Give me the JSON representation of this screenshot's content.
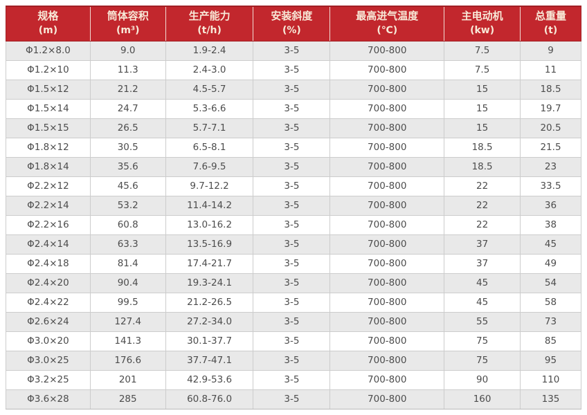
{
  "colors": {
    "header_bg": "#c2272d",
    "header_border": "#a21f24",
    "header_divider": "#f2ddd5",
    "header_text": "#f8e9d8",
    "row_alt_bg": "#e9e9e9",
    "row_bg": "#ffffff",
    "cell_border": "#cccccc",
    "outer_bottom_border": "#b9b9b9",
    "cell_text": "#4c4c4c",
    "page_bg": "#ffffff"
  },
  "table": {
    "columns": [
      {
        "label": "规格",
        "unit": "(m)"
      },
      {
        "label": "筒体容积",
        "unit": "(m³)"
      },
      {
        "label": "生产能力",
        "unit": "(t/h)"
      },
      {
        "label": "安装斜度",
        "unit": "(%)"
      },
      {
        "label": "最高进气温度",
        "unit": "(℃)"
      },
      {
        "label": "主电动机",
        "unit": "(kw)"
      },
      {
        "label": "总重量",
        "unit": "(t)"
      }
    ],
    "rows": [
      [
        "Φ1.2×8.0",
        "9.0",
        "1.9-2.4",
        "3-5",
        "700-800",
        "7.5",
        "9"
      ],
      [
        "Φ1.2×10",
        "11.3",
        "2.4-3.0",
        "3-5",
        "700-800",
        "7.5",
        "11"
      ],
      [
        "Φ1.5×12",
        "21.2",
        "4.5-5.7",
        "3-5",
        "700-800",
        "15",
        "18.5"
      ],
      [
        "Φ1.5×14",
        "24.7",
        "5.3-6.6",
        "3-5",
        "700-800",
        "15",
        "19.7"
      ],
      [
        "Φ1.5×15",
        "26.5",
        "5.7-7.1",
        "3-5",
        "700-800",
        "15",
        "20.5"
      ],
      [
        "Φ1.8×12",
        "30.5",
        "6.5-8.1",
        "3-5",
        "700-800",
        "18.5",
        "21.5"
      ],
      [
        "Φ1.8×14",
        "35.6",
        "7.6-9.5",
        "3-5",
        "700-800",
        "18.5",
        "23"
      ],
      [
        "Φ2.2×12",
        "45.6",
        "9.7-12.2",
        "3-5",
        "700-800",
        "22",
        "33.5"
      ],
      [
        "Φ2.2×14",
        "53.2",
        "11.4-14.2",
        "3-5",
        "700-800",
        "22",
        "36"
      ],
      [
        "Φ2.2×16",
        "60.8",
        "13.0-16.2",
        "3-5",
        "700-800",
        "22",
        "38"
      ],
      [
        "Φ2.4×14",
        "63.3",
        "13.5-16.9",
        "3-5",
        "700-800",
        "37",
        "45"
      ],
      [
        "Φ2.4×18",
        "81.4",
        "17.4-21.7",
        "3-5",
        "700-800",
        "37",
        "49"
      ],
      [
        "Φ2.4×20",
        "90.4",
        "19.3-24.1",
        "3-5",
        "700-800",
        "45",
        "54"
      ],
      [
        "Φ2.4×22",
        "99.5",
        "21.2-26.5",
        "3-5",
        "700-800",
        "45",
        "58"
      ],
      [
        "Φ2.6×24",
        "127.4",
        "27.2-34.0",
        "3-5",
        "700-800",
        "55",
        "73"
      ],
      [
        "Φ3.0×20",
        "141.3",
        "30.1-37.7",
        "3-5",
        "700-800",
        "75",
        "85"
      ],
      [
        "Φ3.0×25",
        "176.6",
        "37.7-47.1",
        "3-5",
        "700-800",
        "75",
        "95"
      ],
      [
        "Φ3.2×25",
        "201",
        "42.9-53.6",
        "3-5",
        "700-800",
        "90",
        "110"
      ],
      [
        "Φ3.6×28",
        "285",
        "60.8-76.0",
        "3-5",
        "700-800",
        "160",
        "135"
      ]
    ]
  }
}
